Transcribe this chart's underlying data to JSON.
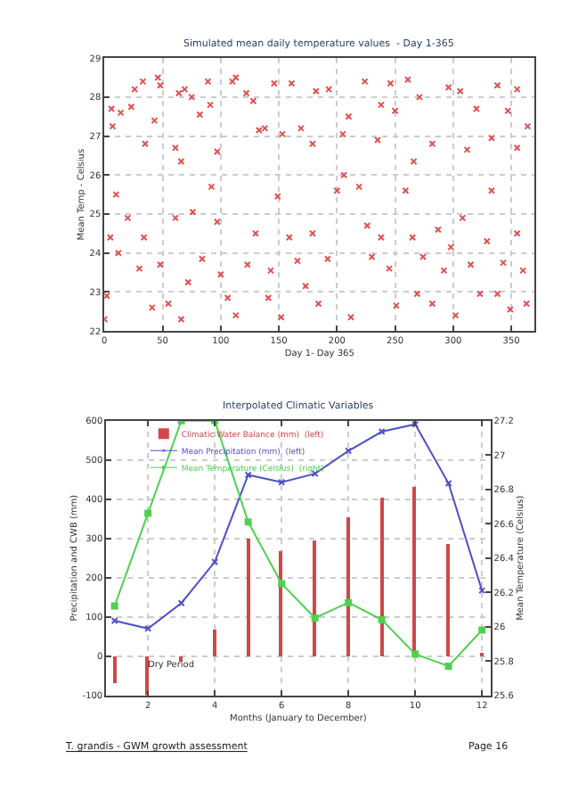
{
  "chart_data": [
    {
      "type": "scatter",
      "title": "Simulated mean daily temperature values  - Day 1-365",
      "xlabel": "Day 1- Day 365",
      "ylabel": "Mean Temp - Celsius",
      "x": [
        6,
        7,
        14,
        23,
        26,
        33,
        46,
        48,
        43,
        64,
        69,
        75,
        89,
        91,
        82,
        61,
        66,
        110,
        113,
        122,
        128,
        138,
        146,
        161,
        153,
        169,
        182,
        193,
        210,
        224,
        238,
        246,
        250,
        261,
        271,
        296,
        306,
        320,
        338,
        347,
        355,
        364,
        355,
        333,
        312,
        282,
        266,
        235,
        205,
        179,
        133,
        97,
        35,
        10,
        5,
        2,
        0,
        12,
        20,
        30,
        34,
        41,
        48,
        55,
        61,
        66,
        72,
        76,
        84,
        92,
        97,
        100,
        106,
        113,
        123,
        130,
        141,
        143,
        149,
        152,
        159,
        166,
        173,
        179,
        184,
        192,
        200,
        206,
        212,
        219,
        226,
        230,
        238,
        245,
        251,
        259,
        265,
        269,
        274,
        282,
        287,
        292,
        298,
        302,
        308,
        315,
        323,
        329,
        333,
        338,
        343,
        349,
        355,
        360,
        363
      ],
      "values": [
        27.7,
        27.25,
        27.6,
        27.75,
        28.2,
        28.4,
        28.5,
        28.3,
        27.4,
        28.1,
        28.2,
        28.0,
        28.4,
        27.8,
        27.55,
        26.7,
        26.35,
        28.4,
        28.5,
        28.1,
        27.9,
        27.2,
        28.35,
        28.35,
        27.05,
        27.2,
        28.15,
        28.2,
        27.5,
        28.4,
        27.8,
        28.35,
        27.65,
        28.45,
        28.0,
        28.25,
        28.15,
        27.7,
        28.3,
        27.65,
        28.2,
        27.25,
        26.7,
        26.95,
        26.65,
        26.8,
        26.35,
        26.9,
        27.05,
        26.8,
        27.15,
        26.6,
        26.8,
        25.5,
        24.4,
        22.9,
        22.3,
        24.0,
        24.9,
        23.6,
        24.4,
        22.6,
        23.7,
        22.7,
        24.9,
        22.3,
        23.25,
        25.05,
        23.85,
        25.7,
        24.8,
        23.45,
        22.85,
        22.4,
        23.7,
        24.5,
        22.85,
        23.55,
        25.45,
        22.35,
        24.4,
        23.8,
        23.15,
        24.5,
        22.7,
        23.85,
        25.6,
        26.0,
        22.35,
        25.7,
        24.7,
        23.9,
        24.4,
        23.6,
        22.65,
        25.6,
        24.4,
        22.95,
        23.9,
        22.7,
        24.6,
        23.55,
        24.15,
        22.4,
        24.9,
        23.7,
        22.95,
        24.3,
        25.6,
        22.95,
        23.75,
        22.55,
        24.5,
        23.55,
        22.7
      ],
      "color": "#e05050",
      "marker": "cross",
      "xlim": [
        0,
        370
      ],
      "xticks": [
        0,
        50,
        100,
        150,
        200,
        250,
        300,
        350
      ],
      "ylim": [
        22,
        29
      ],
      "yticks": [
        22,
        23,
        24,
        25,
        26,
        27,
        28,
        29
      ],
      "grid": true,
      "legend": false
    },
    {
      "type": "bar",
      "title": "Interpolated Climatic Variables",
      "xlabel": "Months (January to December)",
      "ylabel": "Precipitation and CWB (mm)",
      "y2label": "Mean Temperature (Celsius)",
      "x": [
        1,
        2,
        3,
        4,
        5,
        6,
        7,
        8,
        9,
        10,
        11,
        12
      ],
      "series": [
        {
          "name": "Climatic Water Balance (mm)  (left)",
          "type": "bar",
          "color": "#d04848",
          "values": [
            -70,
            -100,
            -15,
            70,
            300,
            270,
            295,
            355,
            405,
            430,
            285,
            5
          ]
        },
        {
          "name": "Mean Precipitation (mm)  (left)",
          "type": "line",
          "color": "#5050c8",
          "marker": "cross",
          "values": [
            90,
            70,
            135,
            240,
            462,
            443,
            465,
            523,
            572,
            591,
            440,
            167
          ]
        },
        {
          "name": "Mean Temperature (Celsius)  (right)",
          "type": "line",
          "color": "#50d050",
          "marker": "square",
          "axis": "y2",
          "values": [
            26.12,
            26.66,
            27.2,
            27.2,
            26.61,
            26.25,
            26.05,
            26.14,
            26.04,
            25.84,
            25.77,
            25.98
          ]
        }
      ],
      "xlim": [
        0.75,
        12.25
      ],
      "xticks": [
        2,
        4,
        6,
        8,
        10,
        12
      ],
      "ylim": [
        -100,
        600
      ],
      "yticks": [
        -100,
        0,
        100,
        200,
        300,
        400,
        500,
        600
      ],
      "y2lim": [
        25.6,
        27.2
      ],
      "y2ticks": [
        25.6,
        25.8,
        26,
        26.2,
        26.4,
        26.6,
        26.8,
        27,
        27.2
      ],
      "grid": true,
      "legend": "top left",
      "annotations": [
        {
          "text": "Dry Period",
          "x": 1.9,
          "y": -25
        },
        "T. grandis - GWM growth assessment",
        "Page 16"
      ]
    }
  ]
}
